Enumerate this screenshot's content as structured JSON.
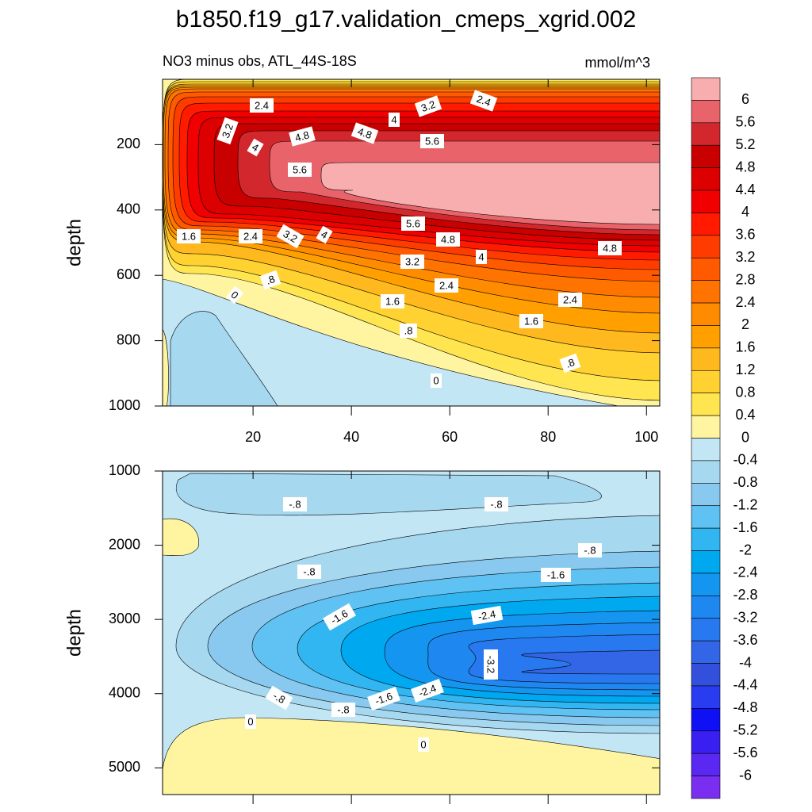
{
  "title": "b1850.f19_g17.validation_cmeps_xgrid.002",
  "chart_data": [
    {
      "type": "contour",
      "subtitle": "NO3 minus obs, ATL_44S-18S",
      "units": "mmol/m^3",
      "ylabel": "depth",
      "xlim": [
        1.6,
        102.7
      ],
      "xticks": [
        20,
        40,
        60,
        80,
        100
      ],
      "xtick_labels": true,
      "ylim": [
        0,
        1000
      ],
      "yticks": [
        200,
        400,
        600,
        800,
        1000
      ],
      "y_reversed": true,
      "contour_labels": [
        2.4,
        3.2,
        2.4,
        3.2,
        4,
        4.8,
        4.8,
        4,
        5.6,
        5.6,
        5.6,
        1.6,
        2.4,
        3.2,
        4,
        4.8,
        4,
        4.8,
        3.2,
        {
          "value": 0.8,
          "label": ".8"
        },
        2.4,
        0,
        1.6,
        2.4,
        1.6,
        {
          "value": 0.8,
          "label": ".8"
        },
        {
          "value": 0.8,
          "label": ".8"
        },
        0
      ]
    },
    {
      "type": "contour",
      "ylabel": "depth",
      "xlim": [
        1.6,
        102.7
      ],
      "xticks": [
        20,
        40,
        60,
        80,
        100
      ],
      "xtick_labels": false,
      "ylim": [
        1000,
        5360
      ],
      "yticks": [
        1000,
        2000,
        3000,
        4000,
        5000
      ],
      "y_reversed": true,
      "contour_labels": [
        {
          "value": -0.8,
          "label": "-.8"
        },
        {
          "value": -0.8,
          "label": "-.8"
        },
        {
          "value": -0.8,
          "label": "-.8"
        },
        {
          "value": -0.8,
          "label": "-.8"
        },
        -1.6,
        -1.6,
        -2.4,
        -3.2,
        -2.4,
        -1.6,
        {
          "value": -0.8,
          "label": "-.8"
        },
        {
          "value": -0.8,
          "label": "-.8"
        },
        0,
        0
      ]
    }
  ],
  "colorbar": {
    "levels": [
      6,
      5.6,
      5.2,
      4.8,
      4.4,
      4,
      3.6,
      3.2,
      2.8,
      2.4,
      2,
      1.6,
      1.2,
      0.8,
      0.4,
      0,
      -0.4,
      -0.8,
      -1.2,
      -1.6,
      -2,
      -2.4,
      -2.8,
      -3.2,
      -3.6,
      -4,
      -4.4,
      -4.8,
      -5.2,
      -5.6,
      -6
    ],
    "colors": [
      "#f8aeae",
      "#e8646a",
      "#d2282d",
      "#c80000",
      "#dc0000",
      "#f00000",
      "#ff1a00",
      "#ff3c00",
      "#ff5a00",
      "#ff7300",
      "#ff8c00",
      "#ffa000",
      "#ffb91e",
      "#ffd232",
      "#ffe650",
      "#fff5a0",
      "#c3e6f5",
      "#a6d8f0",
      "#8ac9ef",
      "#5fc2f2",
      "#32b6f2",
      "#00a8f0",
      "#1496f0",
      "#1e88f0",
      "#2878f0",
      "#3266e6",
      "#3250dc",
      "#2a3cf0",
      "#1010f5",
      "#3a20f0",
      "#5a28f0",
      "#7a2ff0"
    ]
  }
}
